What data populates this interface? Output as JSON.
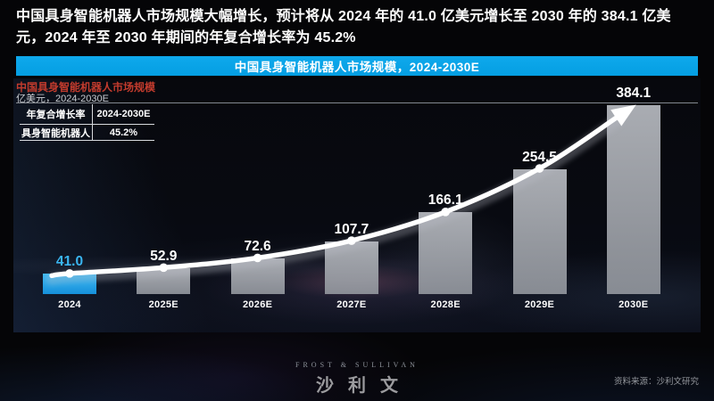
{
  "headline": {
    "line1": "中国具身智能机器人市场规模大幅增长，预计将从 2024 年的 41.0 亿美元增长至 2030 年的 384.1 亿美",
    "line2": "元，2024 年至 2030 年期间的年复合增长率为 45.2%"
  },
  "banner": {
    "title": "中国具身智能机器人市场规模，2024-2030E",
    "bg_color": "#09A4E8"
  },
  "chart": {
    "title": "中国具身智能机器人市场规模",
    "unit_label": "亿美元，2024-2030E",
    "cagr_table": {
      "col1_header": "年复合增长率",
      "col2_header": "2024-2030E",
      "row_label": "具身智能机器人",
      "row_value": "45.2%"
    }
  },
  "chart_data": {
    "type": "bar",
    "title": "中国具身智能机器人市场规模，2024-2030E",
    "ylabel": "亿美元",
    "categories": [
      "2024",
      "2025E",
      "2026E",
      "2027E",
      "2028E",
      "2029E",
      "2030E"
    ],
    "values": [
      41.0,
      52.9,
      72.6,
      107.7,
      166.1,
      254.5,
      384.1
    ],
    "value_labels": [
      "41.0",
      "52.9",
      "72.6",
      "107.7",
      "166.1",
      "254.5",
      "384.1"
    ],
    "cagr_2024_2030E": "45.2%",
    "ylim": [
      0,
      390
    ],
    "grid": "top-line-only",
    "legend_position": "none",
    "highlight_index": 0,
    "highlight_color": "#2FB1EC",
    "bar_color": "#A5A8AD",
    "value_label_color": "#FFFFFF",
    "highlight_value_label_color": "#3AB6F1",
    "trend_line": {
      "show": true,
      "color": "#FFFFFF",
      "arrow": true,
      "markers": 6
    }
  },
  "footer": {
    "logo_top": "FROST & SULLIVAN",
    "logo_main": "沙利文",
    "source": "资料来源：沙利文研究"
  },
  "colors": {
    "chart_title_red": "#C23B2D",
    "gridline": "#83888F",
    "unit_text": "#C9CCD1",
    "footer_text": "#94979D"
  }
}
